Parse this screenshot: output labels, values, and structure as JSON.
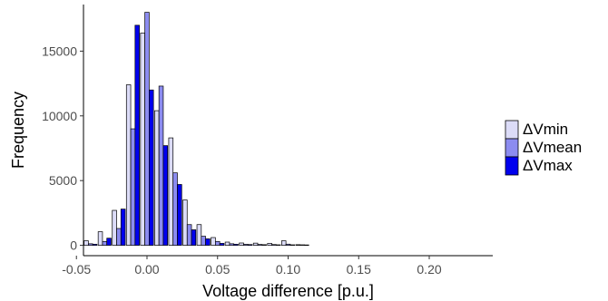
{
  "chart_data": {
    "type": "bar",
    "xlabel": "Voltage difference [p.u.]",
    "ylabel": "Frequency",
    "xlim": [
      -0.045,
      0.245
    ],
    "ylim": [
      -800,
      18600
    ],
    "xticks": [
      -0.05,
      0.0,
      0.05,
      0.1,
      0.15,
      0.2
    ],
    "xtick_labels": [
      "-0.05",
      "0.00",
      "0.05",
      "0.10",
      "0.15",
      "0.20"
    ],
    "yticks": [
      0,
      5000,
      10000,
      15000
    ],
    "ytick_labels": [
      "0",
      "5000",
      "10000",
      "15000"
    ],
    "grid": false,
    "legend_position": "right",
    "bin_width": 0.01,
    "bin_centers": [
      -0.04,
      -0.03,
      -0.02,
      -0.01,
      0.0,
      0.01,
      0.02,
      0.03,
      0.04,
      0.05,
      0.06,
      0.07,
      0.08,
      0.09,
      0.1,
      0.11
    ],
    "series": [
      {
        "name": "ΔVmin",
        "color": "#dcdcf8",
        "values": [
          350,
          1050,
          2700,
          12400,
          16400,
          10400,
          8300,
          3500,
          1600,
          600,
          250,
          180,
          170,
          150,
          350,
          50
        ]
      },
      {
        "name": "ΔVmean",
        "color": "#8c8cf0",
        "values": [
          120,
          300,
          1300,
          9000,
          18000,
          12300,
          5600,
          1600,
          700,
          300,
          120,
          80,
          70,
          60,
          90,
          40
        ]
      },
      {
        "name": "ΔVmax",
        "color": "#0000ee",
        "values": [
          80,
          550,
          2800,
          17000,
          12000,
          7700,
          4700,
          1200,
          500,
          150,
          80,
          60,
          50,
          40,
          40,
          30
        ]
      }
    ]
  }
}
